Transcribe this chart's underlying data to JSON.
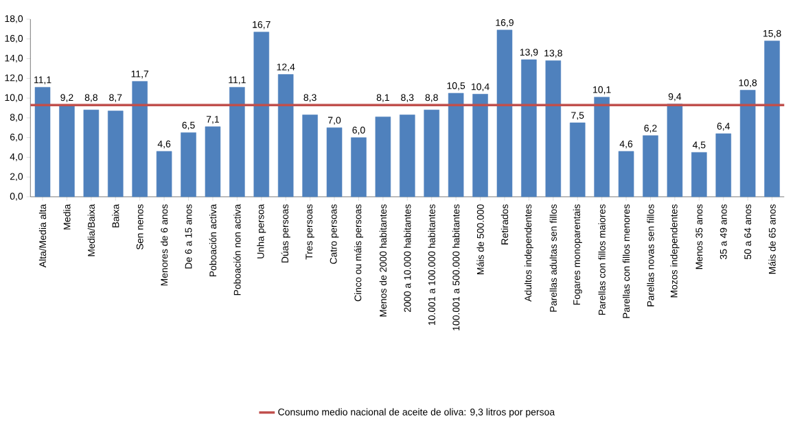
{
  "chart_data": {
    "type": "bar",
    "color": "#4f81bd",
    "categories": [
      "Alta/Media alta",
      "Media",
      "Media/Baixa",
      "Baixa",
      "Sen nenos",
      "Menores de 6 anos",
      "De 6 a 15 anos",
      "Poboación activa",
      "Poboación non activa",
      "Unha persoa",
      "Dúas persoas",
      "Tres persoas",
      "Catro persoas",
      "Cinco ou máis persoas",
      "Menos de 2000 habitantes",
      "2000 a 10.000 habitantes",
      "10.001 a 100.000 habitantes",
      "100.001 a 500.000 habitantes",
      "Máis de 500.000",
      "Retirados",
      "Adultos independentes",
      "Parellas adultas sen fillos",
      "Fogares monoparentais",
      "Parellas con fillos maiores",
      "Parellas con fillos menores",
      "Parellas novas sen fillos",
      "Mozos independentes",
      "Menos 35 anos",
      "35 a 49 anos",
      "50 a 64 anos",
      "Máis de 65 anos"
    ],
    "values": [
      11.1,
      9.2,
      8.8,
      8.7,
      11.7,
      4.6,
      6.5,
      7.1,
      11.1,
      16.7,
      12.4,
      8.3,
      7.0,
      6.0,
      8.1,
      8.3,
      8.8,
      10.5,
      10.4,
      16.9,
      13.9,
      13.8,
      7.5,
      10.1,
      4.6,
      6.2,
      9.4,
      4.5,
      6.4,
      10.8,
      15.8
    ],
    "value_labels": [
      "11,1",
      "9,2",
      "8,8",
      "8,7",
      "11,7",
      "4,6",
      "6,5",
      "7,1",
      "11,1",
      "16,7",
      "12,4",
      "8,3",
      "7,0",
      "6,0",
      "8,1",
      "8,3",
      "8,8",
      "10,5",
      "10,4",
      "16,9",
      "13,9",
      "13,8",
      "7,5",
      "10,1",
      "4,6",
      "6,2",
      "9,4",
      "4,5",
      "6,4",
      "10,8",
      "15,8"
    ],
    "ylim": [
      0,
      18
    ],
    "yticks": [
      {
        "value": 0,
        "label": "0,0"
      },
      {
        "value": 2,
        "label": "2,0"
      },
      {
        "value": 4,
        "label": "4,0"
      },
      {
        "value": 6,
        "label": "6,0"
      },
      {
        "value": 8,
        "label": "8,0"
      },
      {
        "value": 10,
        "label": "10,0"
      },
      {
        "value": 12,
        "label": "12,0"
      },
      {
        "value": 14,
        "label": "14,0"
      },
      {
        "value": 16,
        "label": "16,0"
      },
      {
        "value": 18,
        "label": "18,0"
      }
    ],
    "ref_lines": [
      {
        "axis": "y",
        "value": 9.3,
        "label": "Consumo medio nacional de aceite de oliva: 9,3 litros por persoa",
        "color": "#c0504d"
      }
    ],
    "legend": "bottom"
  }
}
